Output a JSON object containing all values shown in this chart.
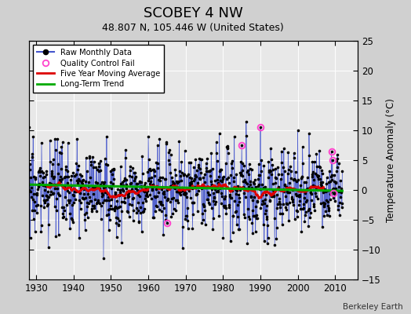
{
  "title": "SCOBEY 4 NW",
  "subtitle": "48.807 N, 105.446 W (United States)",
  "ylabel": "Temperature Anomaly (°C)",
  "credit": "Berkeley Earth",
  "xlim": [
    1928,
    2016
  ],
  "ylim": [
    -15,
    25
  ],
  "yticks": [
    -15,
    -10,
    -5,
    0,
    5,
    10,
    15,
    20,
    25
  ],
  "xticks": [
    1930,
    1940,
    1950,
    1960,
    1970,
    1980,
    1990,
    2000,
    2010
  ],
  "plot_bg": "#e8e8e8",
  "fig_bg": "#d0d0d0",
  "raw_color": "#4455cc",
  "dot_color": "#000000",
  "mavg_color": "#dd0000",
  "trend_color": "#00aa00",
  "qc_color": "#ff44cc",
  "title_fontsize": 13,
  "subtitle_fontsize": 9,
  "seed": 17,
  "n_months": 1008,
  "start_year": 1928.0
}
